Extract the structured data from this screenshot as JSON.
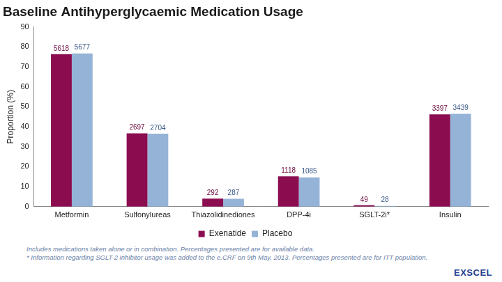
{
  "chart_data": {
    "type": "bar",
    "title": "Baseline Antihyperglycaemic Medication Usage",
    "y_label": "Proportion (%)",
    "categories": [
      "Metformin",
      "Sulfonylureas",
      "Thiazolidinediones",
      "DPP-4i",
      "SGLT-2i*",
      "Insulin"
    ],
    "series": [
      {
        "name": "Exenatide",
        "color": "#8b0d50",
        "values": [
          76.4,
          36.7,
          4.0,
          15.2,
          0.7,
          46.2
        ],
        "counts": [
          5618,
          2697,
          292,
          1118,
          49,
          3397
        ]
      },
      {
        "name": "Placebo",
        "color": "#95b3d7",
        "values": [
          76.8,
          36.6,
          3.9,
          14.7,
          0.4,
          46.5
        ],
        "counts": [
          5677,
          2704,
          287,
          1085,
          28,
          3439
        ]
      }
    ],
    "ylim": [
      0,
      90
    ],
    "yticks": [
      0,
      10,
      20,
      30,
      40,
      50,
      60,
      70,
      80,
      90
    ],
    "grid": false,
    "legend": "bottom",
    "annotations": {
      "footnotes": [
        "Includes medications taken alone or in combination. Percentages presented are for available data.",
        "* Information regarding SGLT-2 inhibitor usage was added to the e.CRF on 9th May, 2013. Percentages presented are for ITT population."
      ],
      "logo": "EXSCEL"
    }
  }
}
